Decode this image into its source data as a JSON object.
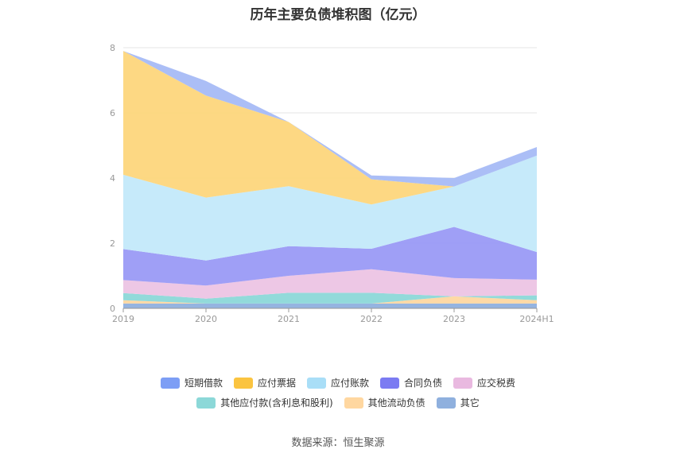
{
  "chart_data": {
    "type": "area",
    "stacked": true,
    "title": "历年主要负债堆积图（亿元）",
    "categories": [
      "2019",
      "2020",
      "2021",
      "2022",
      "2023",
      "2024H1"
    ],
    "ylim": [
      0,
      8
    ],
    "yticks": [
      "0",
      "2",
      "4",
      "6",
      "8"
    ],
    "grid": true,
    "legend_position": "bottom",
    "series": [
      {
        "name": "其它",
        "color": "#8fb0de",
        "values": [
          0.15,
          0.15,
          0.15,
          0.15,
          0.15,
          0.15
        ]
      },
      {
        "name": "其他流动负债",
        "color": "#ffd7a0",
        "values": [
          0.1,
          0.0,
          0.0,
          0.0,
          0.22,
          0.1
        ]
      },
      {
        "name": "其他应付款(含利息和股利)",
        "color": "#8cd8d8",
        "values": [
          0.22,
          0.15,
          0.33,
          0.33,
          0.0,
          0.15
        ]
      },
      {
        "name": "应交税费",
        "color": "#ecc4e4",
        "values": [
          0.4,
          0.4,
          0.52,
          0.72,
          0.56,
          0.48
        ]
      },
      {
        "name": "合同负债",
        "color": "#9a9af6",
        "values": [
          0.95,
          0.77,
          0.91,
          0.63,
          1.57,
          0.85
        ]
      },
      {
        "name": "应付账款",
        "color": "#c3e9fa",
        "values": [
          2.28,
          1.93,
          1.84,
          1.36,
          1.24,
          2.96
        ]
      },
      {
        "name": "应付票据",
        "color": "#fdd67c",
        "values": [
          3.8,
          3.13,
          1.97,
          0.77,
          0.0,
          0.0
        ]
      },
      {
        "name": "短期借款",
        "color": "#a7bbf6",
        "values": [
          0.0,
          0.45,
          0.0,
          0.12,
          0.26,
          0.26
        ]
      }
    ]
  },
  "legend": {
    "row1": [
      {
        "label": "短期借款",
        "color": "#7d9ef5"
      },
      {
        "label": "应付票据",
        "color": "#fbc440"
      },
      {
        "label": "应付账款",
        "color": "#a9def7"
      },
      {
        "label": "合同负债",
        "color": "#7b7bf2"
      },
      {
        "label": "应交税费",
        "color": "#e9b9e0"
      }
    ],
    "row2": [
      {
        "label": "其他应付款(含利息和股利)",
        "color": "#8cd8d8"
      },
      {
        "label": "其他流动负债",
        "color": "#ffd7a0"
      },
      {
        "label": "其它",
        "color": "#8fb0de"
      }
    ]
  },
  "source": "数据来源：恒生聚源"
}
